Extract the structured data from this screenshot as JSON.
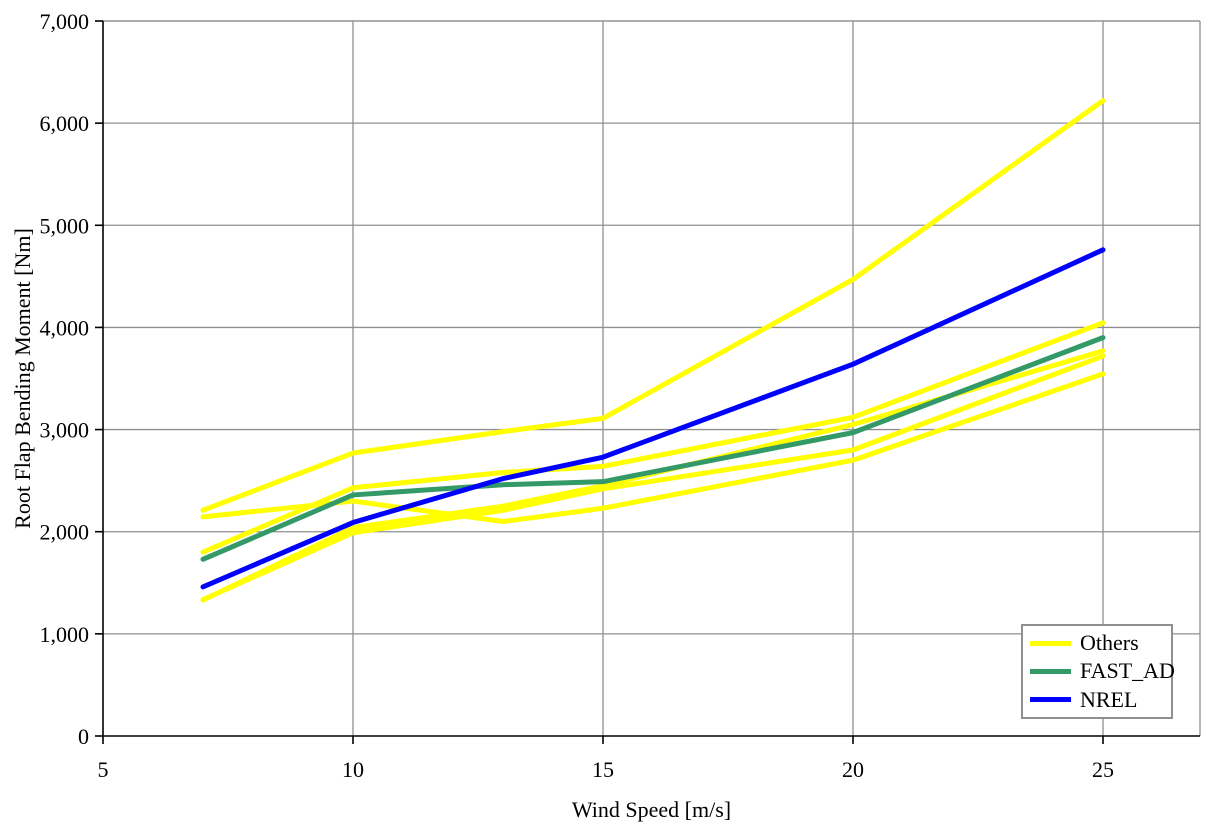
{
  "chart_data": {
    "type": "line",
    "title": "",
    "xlabel": "Wind Speed [m/s]",
    "ylabel": "Root Flap Bending Moment [Nm]",
    "x": [
      7,
      10,
      13,
      15,
      20,
      25
    ],
    "series": [
      {
        "name": "Others",
        "color": "#FFFF00",
        "values": [
          2210,
          2770,
          2980,
          3110,
          4470,
          6220
        ]
      },
      {
        "name": "Others",
        "color": "#FFFF00",
        "values": [
          1800,
          2430,
          2580,
          2640,
          3120,
          4045
        ]
      },
      {
        "name": "Others",
        "color": "#FFFF00",
        "values": [
          1330,
          2040,
          2250,
          2450,
          3050,
          3770
        ]
      },
      {
        "name": "Others",
        "color": "#FFFF00",
        "values": [
          1335,
          1990,
          2210,
          2420,
          2800,
          3720
        ]
      },
      {
        "name": "Others",
        "color": "#FFFF00",
        "values": [
          2145,
          2300,
          2100,
          2230,
          2700,
          3545
        ]
      },
      {
        "name": "FAST_AD",
        "color": "#339966",
        "values": [
          1730,
          2360,
          2460,
          2490,
          2970,
          3900
        ]
      },
      {
        "name": "NREL",
        "color": "#0000FF",
        "values": [
          1460,
          2090,
          2520,
          2730,
          3640,
          4760
        ]
      }
    ],
    "xlim": [
      5,
      26.94
    ],
    "ylim": [
      0,
      7000
    ],
    "xticks": [
      5,
      10,
      15,
      20,
      25
    ],
    "yticks": [
      0,
      1000,
      2000,
      3000,
      4000,
      5000,
      6000,
      7000
    ],
    "ytick_labels": [
      "0",
      "1,000",
      "2,000",
      "3,000",
      "4,000",
      "5,000",
      "6,000",
      "7,000"
    ],
    "grid": true,
    "gridline_color": "#8f8f8f",
    "axis_color": "#000000",
    "background_color": "#ffffff",
    "legend": {
      "position": "bottom-right",
      "entries": [
        {
          "label": "Others",
          "color": "#FFFF00"
        },
        {
          "label": "FAST_AD",
          "color": "#339966"
        },
        {
          "label": "NREL",
          "color": "#0000FF"
        }
      ]
    }
  }
}
